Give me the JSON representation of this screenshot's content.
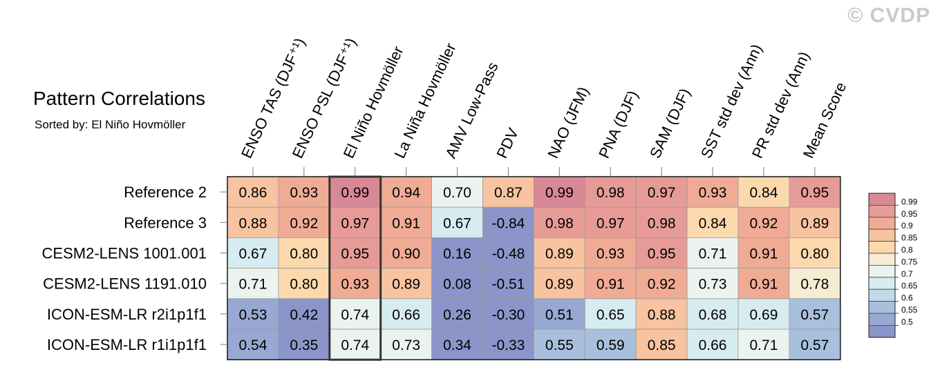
{
  "watermark": "© CVDP",
  "chart_data": {
    "type": "heatmap",
    "title": "Pattern Correlations",
    "subtitle": "Sorted by: El Niño Hovmöller",
    "columns": [
      "ENSO TAS (DJF⁺¹)",
      "ENSO PSL (DJF⁺¹)",
      "El Niño Hovmöller",
      "La Niña Hovmöller",
      "AMV Low-Pass",
      "PDV",
      "NAO (JFM)",
      "PNA (DJF)",
      "SAM (DJF)",
      "SST std dev (Ann)",
      "PR std dev (Ann)",
      "Mean Score"
    ],
    "rows": [
      "Reference 2",
      "Reference 3",
      "CESM2-LENS 1001.001",
      "CESM2-LENS 1191.010",
      "ICON-ESM-LR r2i1p1f1",
      "ICON-ESM-LR r1i1p1f1"
    ],
    "values": [
      [
        "0.86",
        "0.93",
        "0.99",
        "0.94",
        "0.70",
        "0.87",
        "0.99",
        "0.98",
        "0.97",
        "0.93",
        "0.84",
        "0.95"
      ],
      [
        "0.88",
        "0.92",
        "0.97",
        "0.91",
        "0.67",
        "-0.84",
        "0.98",
        "0.97",
        "0.98",
        "0.84",
        "0.92",
        "0.89"
      ],
      [
        "0.67",
        "0.80",
        "0.95",
        "0.90",
        "0.16",
        "-0.48",
        "0.89",
        "0.93",
        "0.95",
        "0.71",
        "0.91",
        "0.80"
      ],
      [
        "0.71",
        "0.80",
        "0.93",
        "0.89",
        "0.08",
        "-0.51",
        "0.89",
        "0.91",
        "0.92",
        "0.73",
        "0.91",
        "0.78"
      ],
      [
        "0.53",
        "0.42",
        "0.74",
        "0.66",
        "0.26",
        "-0.30",
        "0.51",
        "0.65",
        "0.88",
        "0.68",
        "0.69",
        "0.57"
      ],
      [
        "0.54",
        "0.35",
        "0.74",
        "0.73",
        "0.34",
        "-0.33",
        "0.55",
        "0.59",
        "0.85",
        "0.66",
        "0.71",
        "0.57"
      ]
    ],
    "highlighted_column": "El Niño Hovmöller",
    "colorbar": {
      "labels": [
        "0.99",
        "0.95",
        "0.9",
        "0.85",
        "0.8",
        "0.75",
        "0.7",
        "0.65",
        "0.6",
        "0.55",
        "0.5"
      ],
      "colors": [
        "#d98896",
        "#e79b96",
        "#f0ab95",
        "#f7c3a0",
        "#fbd9ad",
        "#f6ecd4",
        "#ebf3ee",
        "#d7ecf1",
        "#c0dbe8",
        "#a8c0dd",
        "#97a8d3",
        "#8b95c9"
      ]
    }
  }
}
